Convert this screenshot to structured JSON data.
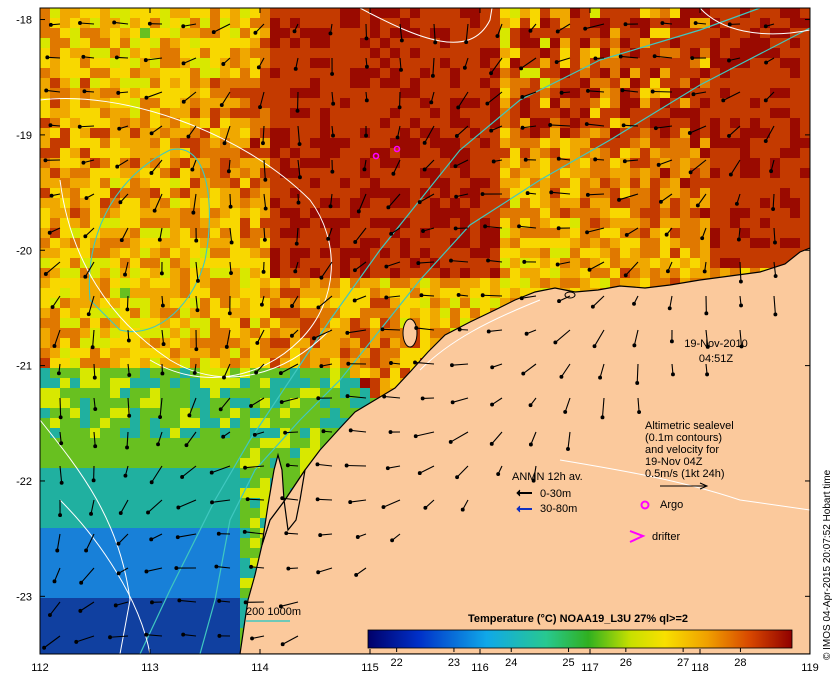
{
  "map": {
    "x_ticks": [
      "112",
      "113",
      "114",
      "115",
      "116",
      "117",
      "118",
      "119"
    ],
    "y_ticks": [
      "-18",
      "-19",
      "-20",
      "-21",
      "-22",
      "-23"
    ],
    "lon_range": [
      112,
      119
    ],
    "lat_range": [
      -23.5,
      -17.9
    ],
    "land_color": "#fbc99c",
    "ocean_palette": [
      "#9a0a00",
      "#c43a00",
      "#e07800",
      "#f0a800",
      "#f8d800",
      "#d8e800",
      "#68c020",
      "#20b0a0",
      "#1880d8",
      "#1040a0"
    ]
  },
  "date_label": {
    "date": "19-Nov-2010",
    "time": "04:51Z"
  },
  "legend_altimetry": {
    "lines": [
      "Altimetric sealevel",
      "(0.1m contours)",
      "and velocity for",
      "19-Nov 04Z",
      "0.5m/s (1kt 24h)"
    ]
  },
  "legend_anmn": {
    "title": "ANMN 12h av.",
    "items": [
      {
        "label": "0-30m",
        "color": "#000000"
      },
      {
        "label": "30-80m",
        "color": "#1030c0"
      }
    ]
  },
  "legend_markers": {
    "argo": {
      "label": "Argo",
      "color": "#ff00ff"
    },
    "drifter": {
      "label": "drifter",
      "color": "#ff00ff"
    }
  },
  "legend_depth": {
    "label": "200  1000m",
    "color": "#40c8c0"
  },
  "colorbar": {
    "title": "Temperature (°C) NOAA19_L3U 27% ql>=2",
    "ticks": [
      "22",
      "23",
      "24",
      "25",
      "26",
      "27",
      "28"
    ],
    "range": [
      21.5,
      28.9
    ]
  },
  "credit": "© IMOS 04-Apr-2015 20:07:52 Hobart time"
}
